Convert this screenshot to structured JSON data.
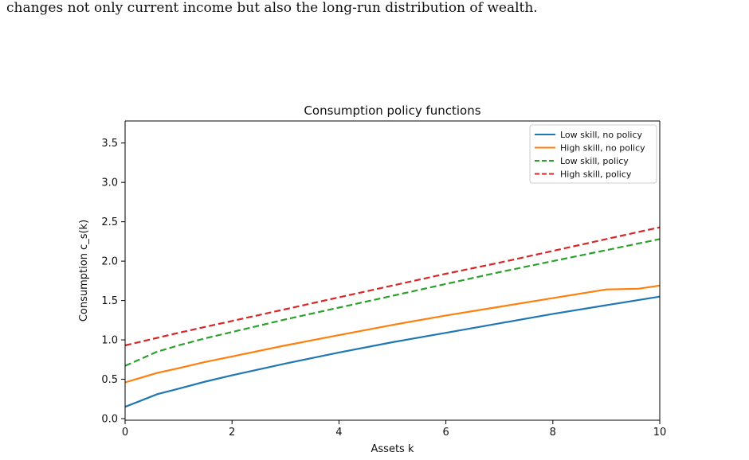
{
  "document": {
    "text_line": "changes not only current income but also the long-run distribution of wealth."
  },
  "chart_data": {
    "type": "line",
    "title": "Consumption policy functions",
    "xlabel": "Assets k",
    "ylabel": "Consumption c_s(k)",
    "xlim": [
      0,
      10
    ],
    "ylim": [
      -0.02,
      3.78
    ],
    "xticks": [
      0,
      2,
      4,
      6,
      8,
      10
    ],
    "xtick_labels": [
      "0",
      "2",
      "4",
      "6",
      "8",
      "10"
    ],
    "yticks": [
      0.0,
      0.5,
      1.0,
      1.5,
      2.0,
      2.5,
      3.0,
      3.5
    ],
    "ytick_labels": [
      "0.0",
      "0.5",
      "1.0",
      "1.5",
      "2.0",
      "2.5",
      "3.0",
      "3.5"
    ],
    "grid": false,
    "legend_position": "top-right",
    "series": [
      {
        "name": "Low skill, no policy",
        "color": "#1f77b4",
        "dash": "solid",
        "x": [
          0,
          0.3,
          0.6,
          1,
          1.5,
          2,
          3,
          4,
          5,
          6,
          7,
          8,
          9,
          10
        ],
        "y": [
          0.15,
          0.23,
          0.31,
          0.38,
          0.47,
          0.55,
          0.7,
          0.84,
          0.97,
          1.09,
          1.21,
          1.33,
          1.44,
          1.55
        ]
      },
      {
        "name": "High skill, no policy",
        "color": "#ff7f0e",
        "dash": "solid",
        "x": [
          0,
          0.3,
          0.6,
          1,
          1.5,
          2,
          3,
          4,
          5,
          6,
          7,
          8,
          9,
          9.6,
          10
        ],
        "y": [
          0.46,
          0.52,
          0.58,
          0.64,
          0.72,
          0.79,
          0.93,
          1.06,
          1.19,
          1.31,
          1.42,
          1.53,
          1.64,
          1.65,
          1.69
        ]
      },
      {
        "name": "Low skill, policy",
        "color": "#2ca02c",
        "dash": "dashed",
        "x": [
          0,
          0.3,
          0.6,
          1,
          1.5,
          2,
          3,
          4,
          5,
          6,
          7,
          8,
          9,
          10
        ],
        "y": [
          0.67,
          0.76,
          0.85,
          0.93,
          1.02,
          1.1,
          1.26,
          1.41,
          1.56,
          1.71,
          1.86,
          2.0,
          2.14,
          2.28
        ]
      },
      {
        "name": "High skill, policy",
        "color": "#d62728",
        "dash": "dashed",
        "x": [
          0,
          1,
          2,
          3,
          4,
          5,
          6,
          7,
          8,
          9,
          10
        ],
        "y": [
          0.93,
          1.09,
          1.24,
          1.39,
          1.54,
          1.69,
          1.84,
          1.98,
          2.13,
          2.28,
          2.43
        ]
      }
    ]
  }
}
